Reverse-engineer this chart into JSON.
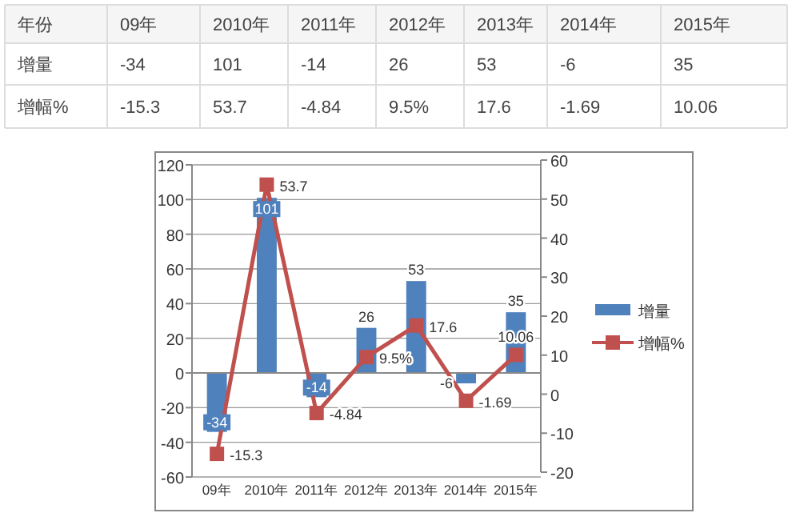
{
  "chart_data": {
    "type": "bar",
    "categories": [
      "09年",
      "2010年",
      "2011年",
      "2012年",
      "2013年",
      "2014年",
      "2015年"
    ],
    "annotations": [
      "年份"
    ],
    "series": [
      {
        "name": "增量",
        "color": "#4f81bd",
        "values": [
          -34,
          101,
          -14,
          26,
          53,
          -6,
          35
        ],
        "value_labels": [
          "-34",
          "101",
          "-14",
          "26",
          "53",
          "-6",
          "35"
        ]
      },
      {
        "name": "增幅%",
        "type": "line",
        "axis": "y2",
        "color": "#c0504d",
        "marker": "square",
        "values": [
          -15.3,
          53.7,
          -4.84,
          9.5,
          17.6,
          -1.69,
          10.06
        ],
        "value_labels": [
          "-15.3",
          "53.7",
          "-4.84",
          "9.5%",
          "17.6",
          "-1.69",
          "10.06"
        ]
      }
    ],
    "ylim": [
      -60,
      120
    ],
    "yticks": [
      -60,
      -40,
      -20,
      0,
      20,
      40,
      60,
      80,
      100,
      120
    ],
    "y2lim": [
      -20,
      60
    ],
    "y2ticks": [
      -20,
      -10,
      0,
      10,
      20,
      30,
      40,
      50,
      60
    ],
    "grid": "y",
    "legend": "right",
    "data_labels": true
  }
}
